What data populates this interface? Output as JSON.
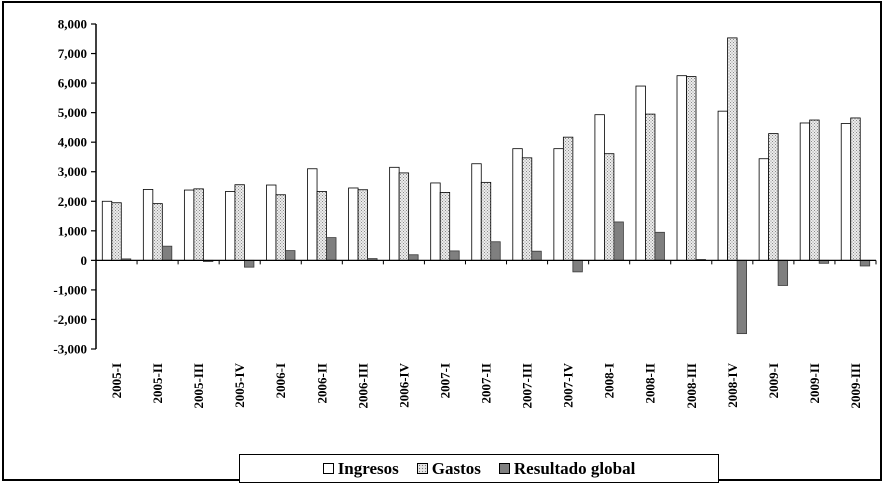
{
  "chart_data": {
    "type": "bar",
    "categories": [
      "2005-I",
      "2005-II",
      "2005-III",
      "2005-IV",
      "2006-I",
      "2006-II",
      "2006-III",
      "2006-IV",
      "2007-I",
      "2007-II",
      "2007-III",
      "2007-IV",
      "2008-I",
      "2008-II",
      "2008-III",
      "2008-IV",
      "2009-I",
      "2009-II",
      "2009-III"
    ],
    "series": [
      {
        "name": "Ingresos",
        "color": "#ffffff",
        "pattern": "none",
        "values": [
          2000,
          2400,
          2380,
          2330,
          2550,
          3100,
          2450,
          3150,
          2620,
          3270,
          3780,
          3780,
          4930,
          5900,
          6250,
          5050,
          3440,
          4650,
          4630
        ]
      },
      {
        "name": "Gastos",
        "color": "#d0d0d0",
        "pattern": "dotted",
        "values": [
          1950,
          1920,
          2420,
          2560,
          2220,
          2330,
          2390,
          2960,
          2300,
          2640,
          3470,
          4170,
          3610,
          4950,
          6220,
          7530,
          4290,
          4750,
          4820
        ]
      },
      {
        "name": "Resultado global",
        "color": "#7f7f7f",
        "pattern": "none",
        "values": [
          50,
          480,
          -40,
          -230,
          330,
          770,
          60,
          190,
          320,
          630,
          310,
          -390,
          1300,
          950,
          30,
          -2480,
          -850,
          -100,
          -190
        ]
      }
    ],
    "ylim": [
      -3000,
      8000
    ],
    "yticks": [
      "8,000",
      "7,000",
      "6,000",
      "5,000",
      "4,000",
      "3,000",
      "2,000",
      "1,000",
      "0",
      "-1,000",
      "-2,000",
      "-3,000"
    ],
    "ytick_values": [
      8000,
      7000,
      6000,
      5000,
      4000,
      3000,
      2000,
      1000,
      0,
      -1000,
      -2000,
      -3000
    ],
    "title": "",
    "xlabel": "",
    "ylabel": "",
    "legend": {
      "position": "bottom",
      "items": [
        "Ingresos",
        "Gastos",
        "Resultado global"
      ]
    },
    "grid": false
  }
}
